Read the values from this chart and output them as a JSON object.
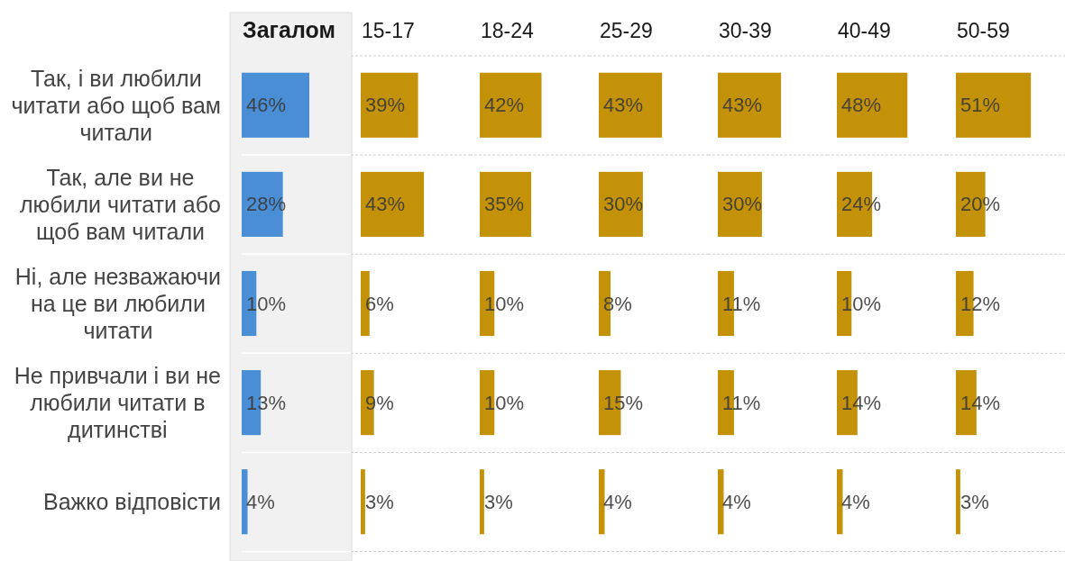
{
  "chart_data": [
    {
      "type": "bar",
      "orientation": "horizontal",
      "title": "Загалом",
      "categories": [
        "Так, і ви любили читати або щоб вам читали",
        "Так, але ви не любили читати або щоб вам читали",
        "Ні, але незважаючи на це ви любили читати",
        "Не привчали і ви не любили читати в дитинстві",
        "Важко відповісти"
      ],
      "values": [
        46,
        28,
        10,
        13,
        4
      ],
      "value_labels": [
        "46%",
        "28%",
        "10%",
        "13%",
        "4%"
      ],
      "color": "#4a8fd6",
      "tick_labels": "y",
      "grid": "y"
    },
    {
      "type": "bar",
      "orientation": "horizontal",
      "title": "15-17",
      "categories": [
        "Так, і ви любили читати або щоб вам читали",
        "Так, але ви не любили читати або щоб вам читали",
        "Ні, але незважаючи на це ви любили читати",
        "Не привчали і ви не любили читати в дитинстві",
        "Важко відповісти"
      ],
      "values": [
        39,
        43,
        6,
        9,
        3
      ],
      "value_labels": [
        "39%",
        "43%",
        "6%",
        "9%",
        "3%"
      ],
      "color": "#c49208",
      "tick_labels": false,
      "grid": "y"
    },
    {
      "type": "bar",
      "orientation": "horizontal",
      "title": "18-24",
      "categories": [
        "Так, і ви любили читати або щоб вам читали",
        "Так, але ви не любили читати або щоб вам читали",
        "Ні, але незважаючи на це ви любили читати",
        "Не привчали і ви не любили читати в дитинстві",
        "Важко відповісти"
      ],
      "values": [
        42,
        35,
        10,
        10,
        3
      ],
      "value_labels": [
        "42%",
        "35%",
        "10%",
        "10%",
        "3%"
      ],
      "color": "#c49208",
      "tick_labels": false,
      "grid": "y"
    },
    {
      "type": "bar",
      "orientation": "horizontal",
      "title": "25-29",
      "categories": [
        "Так, і ви любили читати або щоб вам читали",
        "Так, але ви не любили читати або щоб вам читали",
        "Ні, але незважаючи на це ви любили читати",
        "Не привчали і ви не любили читати в дитинстві",
        "Важко відповісти"
      ],
      "values": [
        43,
        30,
        8,
        15,
        4
      ],
      "value_labels": [
        "43%",
        "30%",
        "8%",
        "15%",
        "4%"
      ],
      "color": "#c49208",
      "tick_labels": false,
      "grid": "y"
    },
    {
      "type": "bar",
      "orientation": "horizontal",
      "title": "30-39",
      "categories": [
        "Так, і ви любили читати або щоб вам читали",
        "Так, але ви не любили читати або щоб вам читали",
        "Ні, але незважаючи на це ви любили читати",
        "Не привчали і ви не любили читати в дитинстві",
        "Важко відповісти"
      ],
      "values": [
        43,
        30,
        11,
        11,
        4
      ],
      "value_labels": [
        "43%",
        "30%",
        "11%",
        "11%",
        "4%"
      ],
      "color": "#c49208",
      "tick_labels": false,
      "grid": "y"
    },
    {
      "type": "bar",
      "orientation": "horizontal",
      "title": "40-49",
      "categories": [
        "Так, і ви любили читати або щоб вам читали",
        "Так, але ви не любили читати або щоб вам читали",
        "Ні, але незважаючи на це ви любили читати",
        "Не привчали і ви не любили читати в дитинстві",
        "Важко відповісти"
      ],
      "values": [
        48,
        24,
        10,
        14,
        4
      ],
      "value_labels": [
        "48%",
        "24%",
        "10%",
        "14%",
        "4%"
      ],
      "color": "#c49208",
      "tick_labels": false,
      "grid": "y"
    },
    {
      "type": "bar",
      "orientation": "horizontal",
      "title": "50-59",
      "categories": [
        "Так, і ви любили читати або щоб вам читали",
        "Так, але ви не любили читати або щоб вам читали",
        "Ні, але незважаючи на це ви любили читати",
        "Не привчали і ви не любили читати в дитинстві",
        "Важко відповісти"
      ],
      "values": [
        51,
        20,
        12,
        14,
        3
      ],
      "value_labels": [
        "51%",
        "20%",
        "12%",
        "14%",
        "3%"
      ],
      "color": "#c49208",
      "tick_labels": false,
      "grid": "y"
    }
  ]
}
